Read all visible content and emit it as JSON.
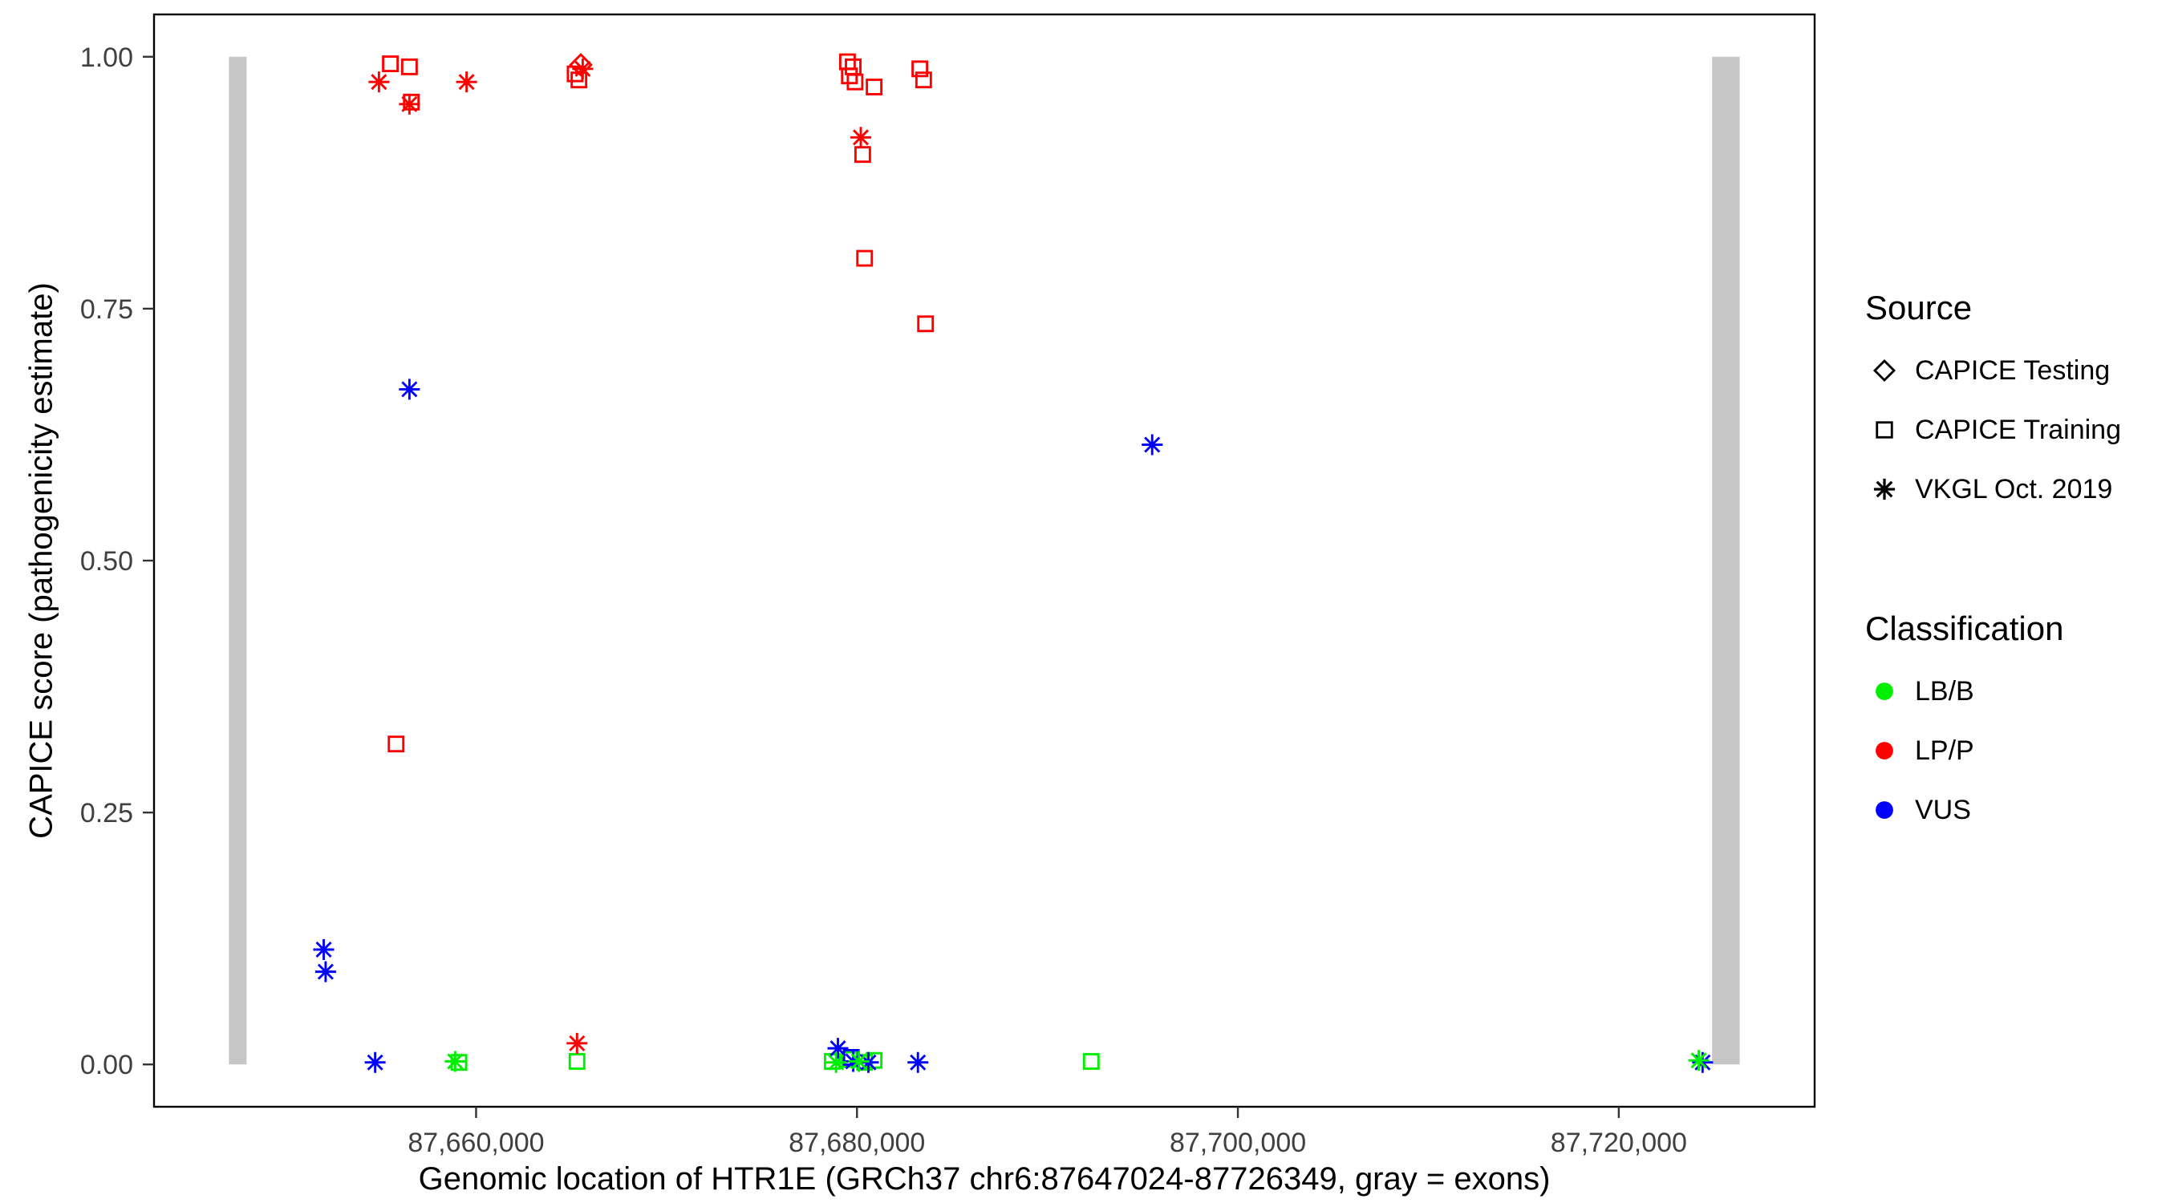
{
  "axes": {
    "x_title": "Genomic location of HTR1E (GRCh37 chr6:87647024-87726349, gray = exons)",
    "y_title": "CAPICE score (pathogenicity estimate)"
  },
  "legend": {
    "source": {
      "title": "Source",
      "items": [
        {
          "shape": "diamond",
          "label": "CAPICE Testing"
        },
        {
          "shape": "square",
          "label": "CAPICE Training"
        },
        {
          "shape": "asterisk",
          "label": "VKGL Oct. 2019"
        }
      ]
    },
    "classification": {
      "title": "Classification",
      "items": [
        {
          "color": "#00EE00",
          "label": "LB/B"
        },
        {
          "color": "#FF0000",
          "label": "LP/P"
        },
        {
          "color": "#0000FF",
          "label": "VUS"
        }
      ]
    }
  },
  "chart_data": {
    "type": "scatter",
    "title": "",
    "xlabel": "Genomic location of HTR1E (GRCh37 chr6:87647024-87726349, gray = exons)",
    "ylabel": "CAPICE score (pathogenicity estimate)",
    "xlim": [
      87643090,
      87730283
    ],
    "ylim": [
      -0.042,
      1.042
    ],
    "grid": false,
    "legend_position": "right",
    "x_ticks": [
      {
        "value": 87660000,
        "label": "87,660,000"
      },
      {
        "value": 87680000,
        "label": "87,680,000"
      },
      {
        "value": 87700000,
        "label": "87,700,000"
      },
      {
        "value": 87720000,
        "label": "87,720,000"
      }
    ],
    "y_ticks": [
      {
        "value": 0.0,
        "label": "0.00"
      },
      {
        "value": 0.25,
        "label": "0.25"
      },
      {
        "value": 0.5,
        "label": "0.50"
      },
      {
        "value": 0.75,
        "label": "0.75"
      },
      {
        "value": 1.0,
        "label": "1.00"
      }
    ],
    "exon_color": "#C6C6C6",
    "exons": [
      {
        "start": 87647024,
        "end": 87647950,
        "ymin": 0.0,
        "ymax": 1.0
      },
      {
        "start": 87724900,
        "end": 87726349,
        "ymin": 0.0,
        "ymax": 1.0
      }
    ],
    "class_colors": {
      "LB/B": "#00EE00",
      "LP/P": "#FF0000",
      "VUS": "#0000FF"
    },
    "series": [
      {
        "name": "CAPICE Testing",
        "shape": "diamond",
        "points": [
          {
            "x": 87665500,
            "y": 0.992,
            "class": "LP/P"
          }
        ]
      },
      {
        "name": "CAPICE Training",
        "shape": "square",
        "points": [
          {
            "x": 87655500,
            "y": 0.993,
            "class": "LP/P"
          },
          {
            "x": 87656500,
            "y": 0.99,
            "class": "LP/P"
          },
          {
            "x": 87656600,
            "y": 0.955,
            "class": "LP/P"
          },
          {
            "x": 87655800,
            "y": 0.318,
            "class": "LP/P"
          },
          {
            "x": 87665200,
            "y": 0.983,
            "class": "LP/P"
          },
          {
            "x": 87665400,
            "y": 0.977,
            "class": "LP/P"
          },
          {
            "x": 87679500,
            "y": 0.995,
            "class": "LP/P"
          },
          {
            "x": 87679800,
            "y": 0.99,
            "class": "LP/P"
          },
          {
            "x": 87679600,
            "y": 0.981,
            "class": "LP/P"
          },
          {
            "x": 87679900,
            "y": 0.975,
            "class": "LP/P"
          },
          {
            "x": 87680900,
            "y": 0.97,
            "class": "LP/P"
          },
          {
            "x": 87680300,
            "y": 0.903,
            "class": "LP/P"
          },
          {
            "x": 87680400,
            "y": 0.8,
            "class": "LP/P"
          },
          {
            "x": 87683300,
            "y": 0.988,
            "class": "LP/P"
          },
          {
            "x": 87683500,
            "y": 0.977,
            "class": "LP/P"
          },
          {
            "x": 87683600,
            "y": 0.735,
            "class": "LP/P"
          },
          {
            "x": 87659100,
            "y": 0.002,
            "class": "LB/B"
          },
          {
            "x": 87665300,
            "y": 0.003,
            "class": "LB/B"
          },
          {
            "x": 87678700,
            "y": 0.003,
            "class": "LB/B"
          },
          {
            "x": 87679600,
            "y": 0.005,
            "class": "LB/B"
          },
          {
            "x": 87680400,
            "y": 0.002,
            "class": "LB/B"
          },
          {
            "x": 87680900,
            "y": 0.004,
            "class": "LB/B"
          },
          {
            "x": 87692300,
            "y": 0.003,
            "class": "LB/B"
          },
          {
            "x": 87679700,
            "y": 0.007,
            "class": "VUS"
          }
        ]
      },
      {
        "name": "VKGL Oct. 2019",
        "shape": "asterisk",
        "points": [
          {
            "x": 87654900,
            "y": 0.975,
            "class": "LP/P"
          },
          {
            "x": 87656500,
            "y": 0.953,
            "class": "LP/P"
          },
          {
            "x": 87659500,
            "y": 0.975,
            "class": "LP/P"
          },
          {
            "x": 87665600,
            "y": 0.988,
            "class": "LP/P"
          },
          {
            "x": 87680200,
            "y": 0.92,
            "class": "LP/P"
          },
          {
            "x": 87665300,
            "y": 0.021,
            "class": "LP/P"
          },
          {
            "x": 87656500,
            "y": 0.67,
            "class": "VUS"
          },
          {
            "x": 87695500,
            "y": 0.615,
            "class": "VUS"
          },
          {
            "x": 87652000,
            "y": 0.114,
            "class": "VUS"
          },
          {
            "x": 87652100,
            "y": 0.092,
            "class": "VUS"
          },
          {
            "x": 87654700,
            "y": 0.002,
            "class": "VUS"
          },
          {
            "x": 87679000,
            "y": 0.016,
            "class": "VUS"
          },
          {
            "x": 87679800,
            "y": 0.003,
            "class": "VUS"
          },
          {
            "x": 87680600,
            "y": 0.002,
            "class": "VUS"
          },
          {
            "x": 87683200,
            "y": 0.002,
            "class": "VUS"
          },
          {
            "x": 87724400,
            "y": 0.002,
            "class": "VUS"
          },
          {
            "x": 87658900,
            "y": 0.003,
            "class": "LB/B"
          },
          {
            "x": 87678900,
            "y": 0.002,
            "class": "LB/B"
          },
          {
            "x": 87680100,
            "y": 0.003,
            "class": "LB/B"
          },
          {
            "x": 87724200,
            "y": 0.004,
            "class": "LB/B"
          }
        ]
      }
    ]
  }
}
